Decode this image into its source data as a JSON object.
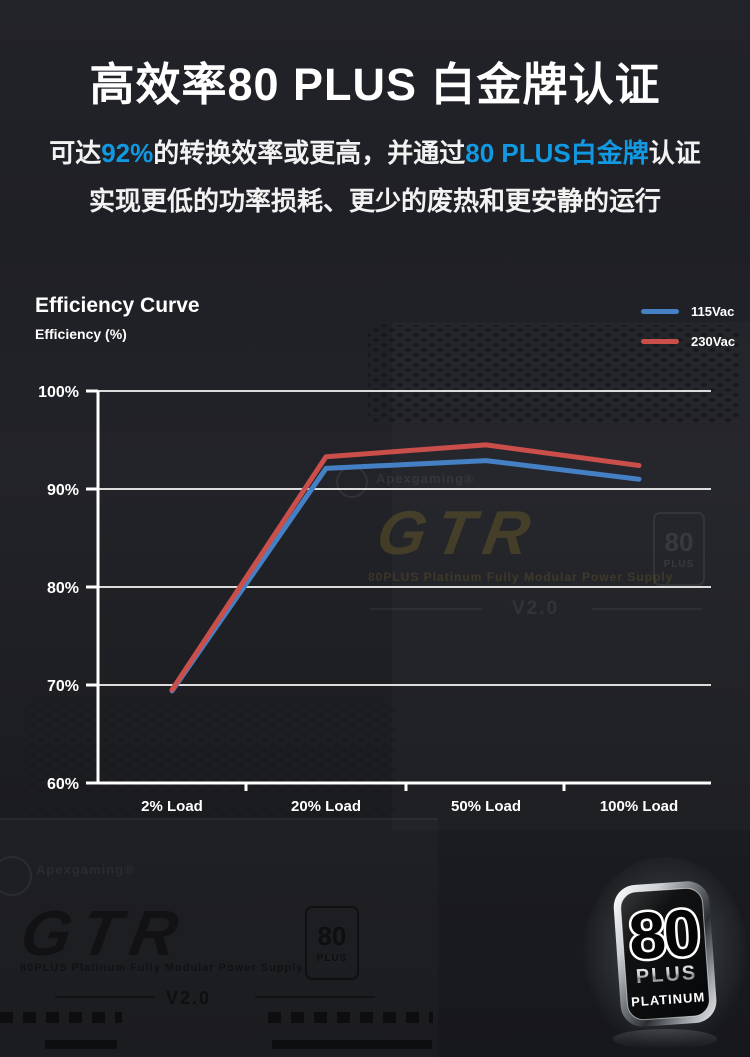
{
  "header": {
    "title": "高效率80 PLUS 白金牌认证",
    "subtitle1_part1": "可达",
    "subtitle1_highlight1": "92%",
    "subtitle1_part2": "的转换效率或更高，并通过",
    "subtitle1_highlight2": "80 PLUS白金牌",
    "subtitle1_part3": "认证",
    "subtitle2": "实现更低的功率损耗、更少的废热和更安静的运行",
    "accent_color": "#1299e3"
  },
  "chart": {
    "title": "Efficiency Curve",
    "ylabel_caption": "Efficiency (%)"
  },
  "chart_data": {
    "type": "line",
    "title": "Efficiency Curve",
    "ylabel": "Efficiency (%)",
    "categories": [
      "2% Load",
      "20% Load",
      "50% Load",
      "100% Load"
    ],
    "series": [
      {
        "name": "115Vac",
        "color": "#4580c4",
        "values": [
          69.4,
          92.1,
          92.9,
          91.0
        ]
      },
      {
        "name": "230Vac",
        "color": "#ca4e4a",
        "values": [
          69.5,
          93.3,
          94.5,
          92.4
        ]
      }
    ],
    "ylim": [
      60,
      100
    ],
    "yticks": [
      100,
      90,
      80,
      70,
      60
    ],
    "ytick_labels": [
      "100%",
      "90%",
      "80%",
      "70%",
      "60%"
    ],
    "grid": true,
    "grid_color": "#ededed",
    "axis_color": "#ffffff",
    "legend_position": "top-right"
  },
  "watermark_chart": {
    "brand": "Apexgaming®",
    "model": "GTR",
    "tagline": "80PLUS Platinum Fully Modular Power Supply",
    "badge_number": "80",
    "badge_plus": "PLUS",
    "version": "V2.0"
  },
  "watermark_bottom": {
    "brand": "Apexgaming®",
    "model": "GTR",
    "tagline": "80PLUS Platinum Fully Modular Power Supply",
    "badge_number": "80",
    "badge_plus": "PLUS",
    "version": "V2.0"
  },
  "platinum_badge": {
    "number": "80",
    "plus": "PLUS",
    "platinum": "PLATINUM"
  }
}
